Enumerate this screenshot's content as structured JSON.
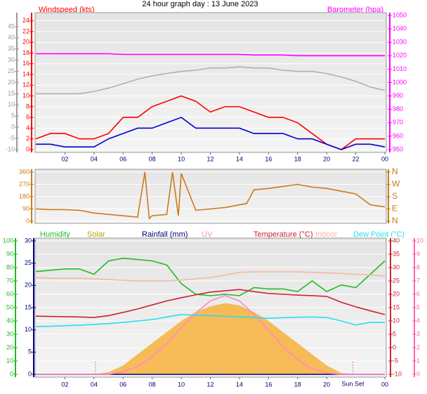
{
  "chart_data": [
    {
      "type": "line",
      "title": "24 hour graph day : 13 June 2023",
      "ylabel": "Windspeed (kts)",
      "y2label": "Barometer (hpa)",
      "x": [
        0,
        1,
        2,
        3,
        4,
        5,
        6,
        7,
        8,
        9,
        10,
        11,
        12,
        13,
        14,
        15,
        16,
        17,
        18,
        19,
        20,
        21,
        22,
        23,
        24
      ],
      "xlim": [
        0,
        24
      ],
      "xticks": [
        {
          "value": 2,
          "label": "02"
        },
        {
          "value": 4,
          "label": "04"
        },
        {
          "value": 6,
          "label": "06"
        },
        {
          "value": 8,
          "label": "08"
        },
        10,
        12,
        14,
        16,
        18,
        20,
        22,
        {
          "value": 24,
          "label": "00"
        }
      ],
      "ylim": [
        0,
        25
      ],
      "yticks": [
        0,
        2,
        4,
        6,
        8,
        10,
        12,
        14,
        16,
        18,
        20,
        22,
        24
      ],
      "ycolor": "#ff0000",
      "y2lim": [
        950,
        1050
      ],
      "y2ticks": [
        950,
        960,
        970,
        980,
        990,
        1000,
        1010,
        1020,
        1030,
        1040,
        1050
      ],
      "y2color": "#ff00ff",
      "y3lim": [
        -10,
        50
      ],
      "y3ticks": [
        -10,
        -5,
        0,
        5,
        10,
        15,
        20,
        25,
        30,
        35,
        40,
        45
      ],
      "y3color": "#999999",
      "grid": true,
      "series": [
        {
          "color": "#b0b0b0",
          "axis": "y3",
          "values": [
            15,
            15,
            15,
            15,
            16,
            17.5,
            19.5,
            21.5,
            23,
            24,
            25,
            25.5,
            26.5,
            26.5,
            27,
            26.5,
            26.5,
            25.5,
            25,
            25,
            24,
            22.5,
            20.5,
            18,
            16.5
          ]
        },
        {
          "color": "#ff00ff",
          "axis": "y2",
          "values": [
            1021.5,
            1021.5,
            1021.5,
            1021.5,
            1021.5,
            1021.5,
            1021,
            1021,
            1021,
            1021,
            1021,
            1021,
            1021,
            1021,
            1021,
            1020.5,
            1020.5,
            1020.5,
            1020,
            1020,
            1020,
            1020,
            1020,
            1020,
            1020
          ]
        },
        {
          "color": "#ff0000",
          "values": [
            2,
            3,
            3,
            2,
            2,
            3,
            6,
            6,
            8,
            9,
            10,
            9,
            7,
            8,
            8,
            7,
            6,
            6,
            5,
            3,
            1,
            0,
            2,
            2,
            2
          ]
        },
        {
          "color": "#0000cc",
          "values": [
            1,
            1,
            0.5,
            0.5,
            0.5,
            2,
            3,
            4,
            4,
            5,
            6,
            4,
            4,
            4,
            4,
            3,
            3,
            3,
            2,
            2,
            1,
            0,
            1,
            1,
            0.5
          ]
        }
      ]
    },
    {
      "type": "line",
      "x": [
        0,
        1,
        2,
        3,
        4,
        5,
        6,
        7,
        7.5,
        7.8,
        8,
        9,
        9.4,
        9.8,
        10,
        11,
        12,
        13,
        14,
        14.5,
        15,
        16,
        17,
        18,
        19,
        20,
        21,
        22,
        23,
        24
      ],
      "xlim": [
        0,
        24
      ],
      "ylim": [
        0,
        360
      ],
      "yticks": [
        0,
        90,
        180,
        270,
        360
      ],
      "ycolor": "#cc7a1a",
      "y2lim": [
        0,
        360
      ],
      "y2ticks": [
        {
          "value": 0,
          "label": "N"
        },
        {
          "value": 90,
          "label": "E"
        },
        {
          "value": 180,
          "label": "S"
        },
        {
          "value": 270,
          "label": "W"
        },
        {
          "value": 360,
          "label": "N"
        }
      ],
      "y2color": "#cc7a1a",
      "grid": true,
      "series": [
        {
          "color": "#cc7a1a",
          "values": [
            90,
            85,
            85,
            80,
            60,
            50,
            40,
            30,
            360,
            20,
            40,
            50,
            360,
            40,
            350,
            80,
            90,
            100,
            120,
            130,
            230,
            240,
            255,
            270,
            250,
            240,
            220,
            200,
            120,
            105
          ]
        }
      ]
    },
    {
      "type": "line",
      "x": [
        0,
        1,
        2,
        3,
        4,
        5,
        6,
        7,
        8,
        9,
        10,
        11,
        12,
        13,
        14,
        15,
        16,
        17,
        18,
        19,
        20,
        21,
        22,
        23,
        24
      ],
      "xlim": [
        0,
        24
      ],
      "xticks": [
        {
          "value": 2,
          "label": "02"
        },
        {
          "value": 4,
          "label": "04"
        },
        {
          "value": 6,
          "label": "06"
        },
        {
          "value": 8,
          "label": "08"
        },
        10,
        12,
        14,
        16,
        18,
        20,
        {
          "value": 24,
          "label": "00"
        }
      ],
      "ylim": [
        0,
        100
      ],
      "yticks": [
        0,
        10,
        20,
        30,
        40,
        50,
        60,
        70,
        80,
        90,
        100
      ],
      "ycolor": "#22bb22",
      "y2lim": [
        -10,
        40
      ],
      "y2ticks": [
        -10,
        -5,
        0,
        5,
        10,
        15,
        20,
        25,
        30,
        35,
        40
      ],
      "y2color": "#cc2233",
      "y3lim": [
        0,
        30
      ],
      "y3ticks": [
        0,
        5,
        10,
        15,
        20,
        25,
        30
      ],
      "y3color": "#000080",
      "y4lim": [
        0,
        10
      ],
      "y4ticks": [
        0,
        1,
        2,
        3,
        4,
        5,
        6,
        7,
        8,
        9,
        10
      ],
      "y4color": "#ff66aa",
      "grid": true,
      "sun_lines": [
        {
          "x": 4.1
        },
        {
          "x": 21.8,
          "label": "Sun Set"
        }
      ],
      "series": [
        {
          "name": "Humidity",
          "color": "#22bb22",
          "values": [
            77,
            78,
            79,
            79,
            75,
            85,
            87,
            86,
            85,
            82,
            68,
            60,
            59,
            60,
            59,
            65,
            64,
            64,
            62,
            70,
            62,
            67,
            65,
            75,
            85
          ]
        },
        {
          "name": "Solar",
          "color": "#f7b23b",
          "label_color": "#b8a000",
          "style": "area",
          "axis": "y3",
          "values": [
            0,
            0,
            0,
            0,
            0,
            0.5,
            2,
            4.5,
            7,
            9.5,
            12,
            14,
            15.3,
            16,
            15.5,
            14,
            12,
            9.5,
            7,
            4.5,
            2,
            0.3,
            0,
            0,
            0
          ]
        },
        {
          "name": "Rainfall (mm)",
          "color": "#000080",
          "axis": "y3",
          "values": [
            0,
            0,
            0,
            0,
            0,
            0,
            0,
            0,
            0,
            0,
            0,
            0,
            0,
            0,
            0,
            0,
            0,
            0,
            0,
            0,
            0,
            0,
            0,
            0,
            0
          ]
        },
        {
          "name": "UV",
          "color": "#ff88cc",
          "axis": "y4",
          "values": [
            0,
            0,
            0,
            0,
            0,
            0,
            0.2,
            0.6,
            1.3,
            2.3,
            3.5,
            4.6,
            5.5,
            5.9,
            5.5,
            4.5,
            3.3,
            2.1,
            1.1,
            0.4,
            0.1,
            0,
            0,
            0,
            0
          ]
        },
        {
          "name": "Temperature (°C)",
          "color": "#cc2233",
          "axis": "y2",
          "values": [
            11.8,
            11.7,
            11.6,
            11.5,
            11.3,
            12,
            13.2,
            14.5,
            16,
            17.5,
            18.7,
            19.8,
            20.8,
            21.3,
            21.8,
            21,
            20.3,
            20,
            19.7,
            19.5,
            19.2,
            17,
            15.3,
            13.8,
            12.4
          ]
        },
        {
          "name": "Indoor",
          "color": "#f4b8a0",
          "axis": "y2",
          "values": [
            26.3,
            26,
            26,
            26,
            25.8,
            25.5,
            25.2,
            25,
            25,
            25,
            25.3,
            25.8,
            26.3,
            27.2,
            28.2,
            28.4,
            28.4,
            28.4,
            28.4,
            28.2,
            28,
            27.8,
            27.5,
            27.2,
            26.8
          ]
        },
        {
          "name": "Dew Point (°C)",
          "color": "#22e0f0",
          "axis": "y2",
          "values": [
            7.9,
            8,
            8.2,
            8.4,
            8.7,
            9,
            9.5,
            10,
            10.5,
            11.5,
            12.4,
            12.2,
            12,
            11.8,
            11.5,
            11.3,
            11,
            11.2,
            11.4,
            11.5,
            11.3,
            10,
            8.5,
            9.5,
            9.5
          ]
        }
      ]
    }
  ]
}
